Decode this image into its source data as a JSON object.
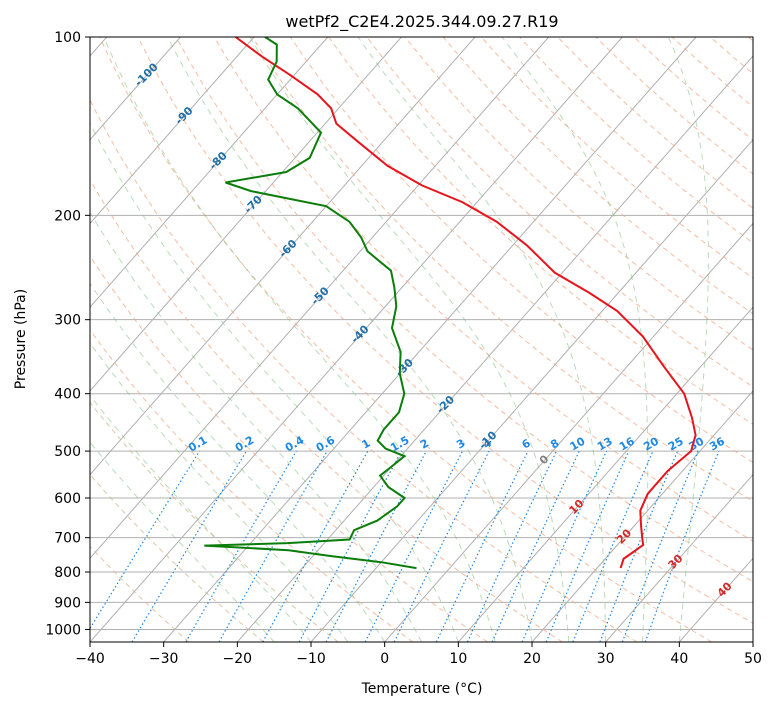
{
  "chart_data": {
    "type": "skew-t",
    "title": "wetPf2_C2E4.2025.344.09.27.R19",
    "xlabel": "Temperature (°C)",
    "ylabel": "Pressure (hPa)",
    "xlim": [
      -40,
      50
    ],
    "ylim": [
      1050,
      100
    ],
    "x_ticks": [
      -40,
      -30,
      -20,
      -10,
      0,
      10,
      20,
      30,
      40,
      50
    ],
    "x_tick_labels": [
      "−40",
      "−30",
      "−20",
      "−10",
      "0",
      "10",
      "20",
      "30",
      "40",
      "50"
    ],
    "y_ticks": [
      100,
      200,
      300,
      400,
      500,
      600,
      700,
      800,
      900,
      1000
    ],
    "y_tick_labels": [
      "100",
      "200",
      "300",
      "400",
      "500",
      "600",
      "700",
      "800",
      "900",
      "1000"
    ],
    "grid": true,
    "isotherms_labeled": [
      {
        "t": -100,
        "label": "-100",
        "p": 116
      },
      {
        "t": -90,
        "label": "-90",
        "p": 136
      },
      {
        "t": -80,
        "label": "-80",
        "p": 162
      },
      {
        "t": -70,
        "label": "-70",
        "p": 192
      },
      {
        "t": -60,
        "label": "-60",
        "p": 228
      },
      {
        "t": -50,
        "label": "-50",
        "p": 274
      },
      {
        "t": -40,
        "label": "-40",
        "p": 318
      },
      {
        "t": -30,
        "label": "-30",
        "p": 362
      },
      {
        "t": -20,
        "label": "-20",
        "p": 418
      },
      {
        "t": -10,
        "label": "-10",
        "p": 480
      },
      {
        "t": 0,
        "label": "0",
        "p": 518
      },
      {
        "t": 10,
        "label": "10",
        "p": 622
      },
      {
        "t": 20,
        "label": "20",
        "p": 698
      },
      {
        "t": 30,
        "label": "30",
        "p": 770
      },
      {
        "t": 40,
        "label": "40",
        "p": 858
      }
    ],
    "mixing_ratio_lines": [
      0.1,
      0.2,
      0.4,
      0.6,
      1,
      1.5,
      2,
      3,
      4,
      6,
      8,
      10,
      13,
      16,
      20,
      25,
      30,
      36
    ],
    "mixing_ratio_labels": [
      "0.1",
      "0.2",
      "0.4",
      "0.6",
      "1",
      "1.5",
      "2",
      "3",
      "4",
      "6",
      "8",
      "10",
      "13",
      "16",
      "20",
      "25",
      "30",
      "36"
    ],
    "series": [
      {
        "name": "Temperature",
        "color": "#e8141b",
        "points": [
          [
            788,
            23.2
          ],
          [
            760,
            22.5
          ],
          [
            740,
            23.0
          ],
          [
            720,
            23.5
          ],
          [
            700,
            22.5
          ],
          [
            670,
            21.0
          ],
          [
            630,
            19.0
          ],
          [
            590,
            18.0
          ],
          [
            540,
            18.0
          ],
          [
            500,
            18.8
          ],
          [
            470,
            17.5
          ],
          [
            440,
            15.0
          ],
          [
            400,
            11.0
          ],
          [
            360,
            5.0
          ],
          [
            320,
            -1.5
          ],
          [
            290,
            -8.0
          ],
          [
            270,
            -14.0
          ],
          [
            250,
            -21.0
          ],
          [
            225,
            -28.0
          ],
          [
            205,
            -35.0
          ],
          [
            190,
            -42.0
          ],
          [
            178,
            -49.5
          ],
          [
            165,
            -56.5
          ],
          [
            150,
            -63.5
          ],
          [
            140,
            -68.5
          ],
          [
            132,
            -71.0
          ],
          [
            125,
            -74.5
          ],
          [
            116,
            -80.5
          ],
          [
            108,
            -86.5
          ],
          [
            100,
            -92.5
          ]
        ]
      },
      {
        "name": "Dewpoint",
        "color": "#0a7d0a",
        "points": [
          [
            788,
            -4.5
          ],
          [
            770,
            -10.0
          ],
          [
            752,
            -17.5
          ],
          [
            735,
            -24.0
          ],
          [
            722,
            -36.0
          ],
          [
            715,
            -25.0
          ],
          [
            705,
            -17.0
          ],
          [
            680,
            -17.5
          ],
          [
            655,
            -15.5
          ],
          [
            620,
            -14.5
          ],
          [
            600,
            -14.5
          ],
          [
            575,
            -18.0
          ],
          [
            550,
            -20.5
          ],
          [
            530,
            -20.0
          ],
          [
            510,
            -19.5
          ],
          [
            495,
            -23.0
          ],
          [
            480,
            -25.0
          ],
          [
            460,
            -25.5
          ],
          [
            430,
            -25.5
          ],
          [
            400,
            -27.0
          ],
          [
            370,
            -30.0
          ],
          [
            340,
            -32.5
          ],
          [
            310,
            -36.5
          ],
          [
            285,
            -38.5
          ],
          [
            265,
            -41.0
          ],
          [
            248,
            -43.5
          ],
          [
            230,
            -49.0
          ],
          [
            218,
            -51.5
          ],
          [
            205,
            -55.0
          ],
          [
            193,
            -60.0
          ],
          [
            182,
            -72.0
          ],
          [
            176,
            -76.5
          ],
          [
            169,
            -69.5
          ],
          [
            160,
            -68.0
          ],
          [
            145,
            -69.5
          ],
          [
            132,
            -75.5
          ],
          [
            125,
            -80.0
          ],
          [
            118,
            -83.0
          ],
          [
            110,
            -84.0
          ],
          [
            103,
            -86.0
          ],
          [
            100,
            -88.5
          ]
        ]
      }
    ]
  }
}
